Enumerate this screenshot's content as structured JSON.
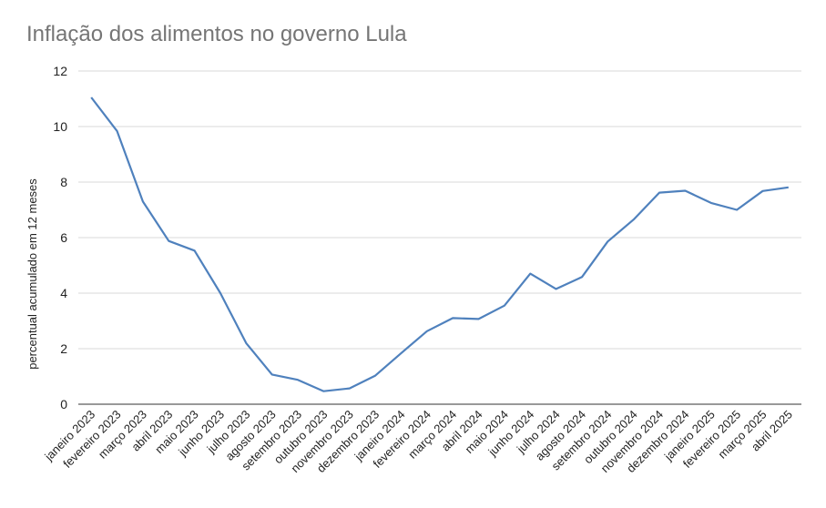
{
  "chart_data": {
    "type": "line",
    "title": "Inflação dos alimentos no governo Lula",
    "xlabel": "",
    "ylabel": "percentual acumulado em 12 meses",
    "ylim": [
      0,
      12
    ],
    "yticks": [
      "0",
      "2",
      "4",
      "6",
      "8",
      "10",
      "12"
    ],
    "grid": true,
    "categories": [
      "janeiro 2023",
      "fevereiro 2023",
      "março 2023",
      "abril 2023",
      "maio 2023",
      "junho 2023",
      "julho 2023",
      "agosto 2023",
      "setembro 2023",
      "outubro 2023",
      "novembro 2023",
      "dezembro 2023",
      "janeiro 2024",
      "fevereiro 2024",
      "março 2024",
      "abril 2024",
      "maio 2024",
      "junho 2024",
      "julho 2024",
      "agosto 2024",
      "setembro 2024",
      "outubro 2024",
      "novembro 2024",
      "dezembro 2024",
      "janeiro 2025",
      "fevereiro 2025",
      "março 2025",
      "abril 2025"
    ],
    "series": [
      {
        "color": "#4f81bd",
        "values": [
          11.05,
          9.84,
          7.3,
          5.88,
          5.53,
          4.0,
          2.2,
          1.07,
          0.88,
          0.47,
          0.57,
          1.03,
          1.84,
          2.63,
          3.1,
          3.07,
          3.55,
          4.7,
          4.15,
          4.58,
          5.86,
          6.65,
          7.62,
          7.69,
          7.25,
          7.0,
          7.68,
          7.81
        ]
      }
    ],
    "colors": {
      "gridline": "#d9d9d9",
      "axis": "#333333",
      "title": "#757575"
    }
  }
}
